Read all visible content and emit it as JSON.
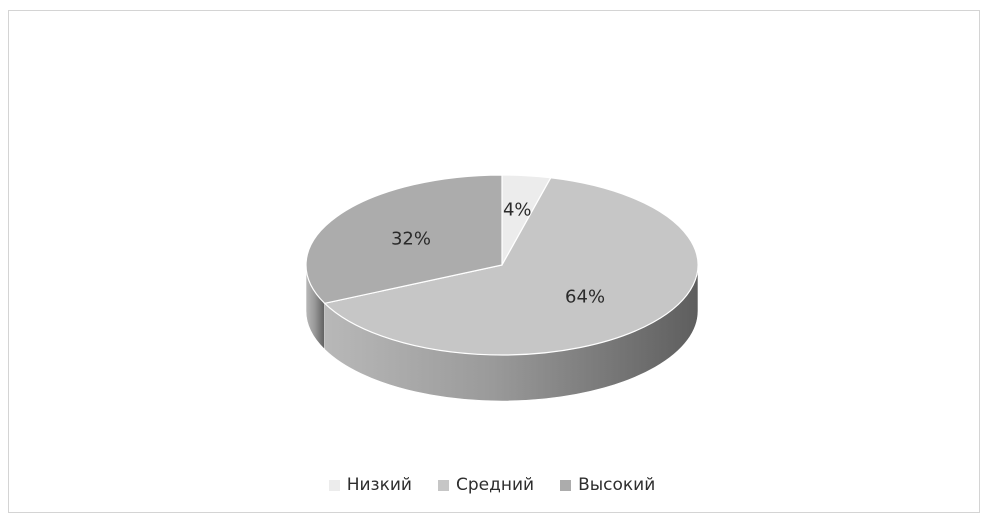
{
  "chart_data": {
    "type": "pie",
    "style": "3d",
    "categories": [
      "Низкий",
      "Средний",
      "Высокий"
    ],
    "values": [
      4,
      64,
      32
    ],
    "labels": [
      "4%",
      "64%",
      "32%"
    ],
    "colors": [
      "#ececec",
      "#c6c6c6",
      "#acacac"
    ],
    "side_colors": [
      "#cfcfcf",
      "#8a8a8a",
      "#7a7a7a"
    ],
    "legend_placement": "bottom"
  }
}
